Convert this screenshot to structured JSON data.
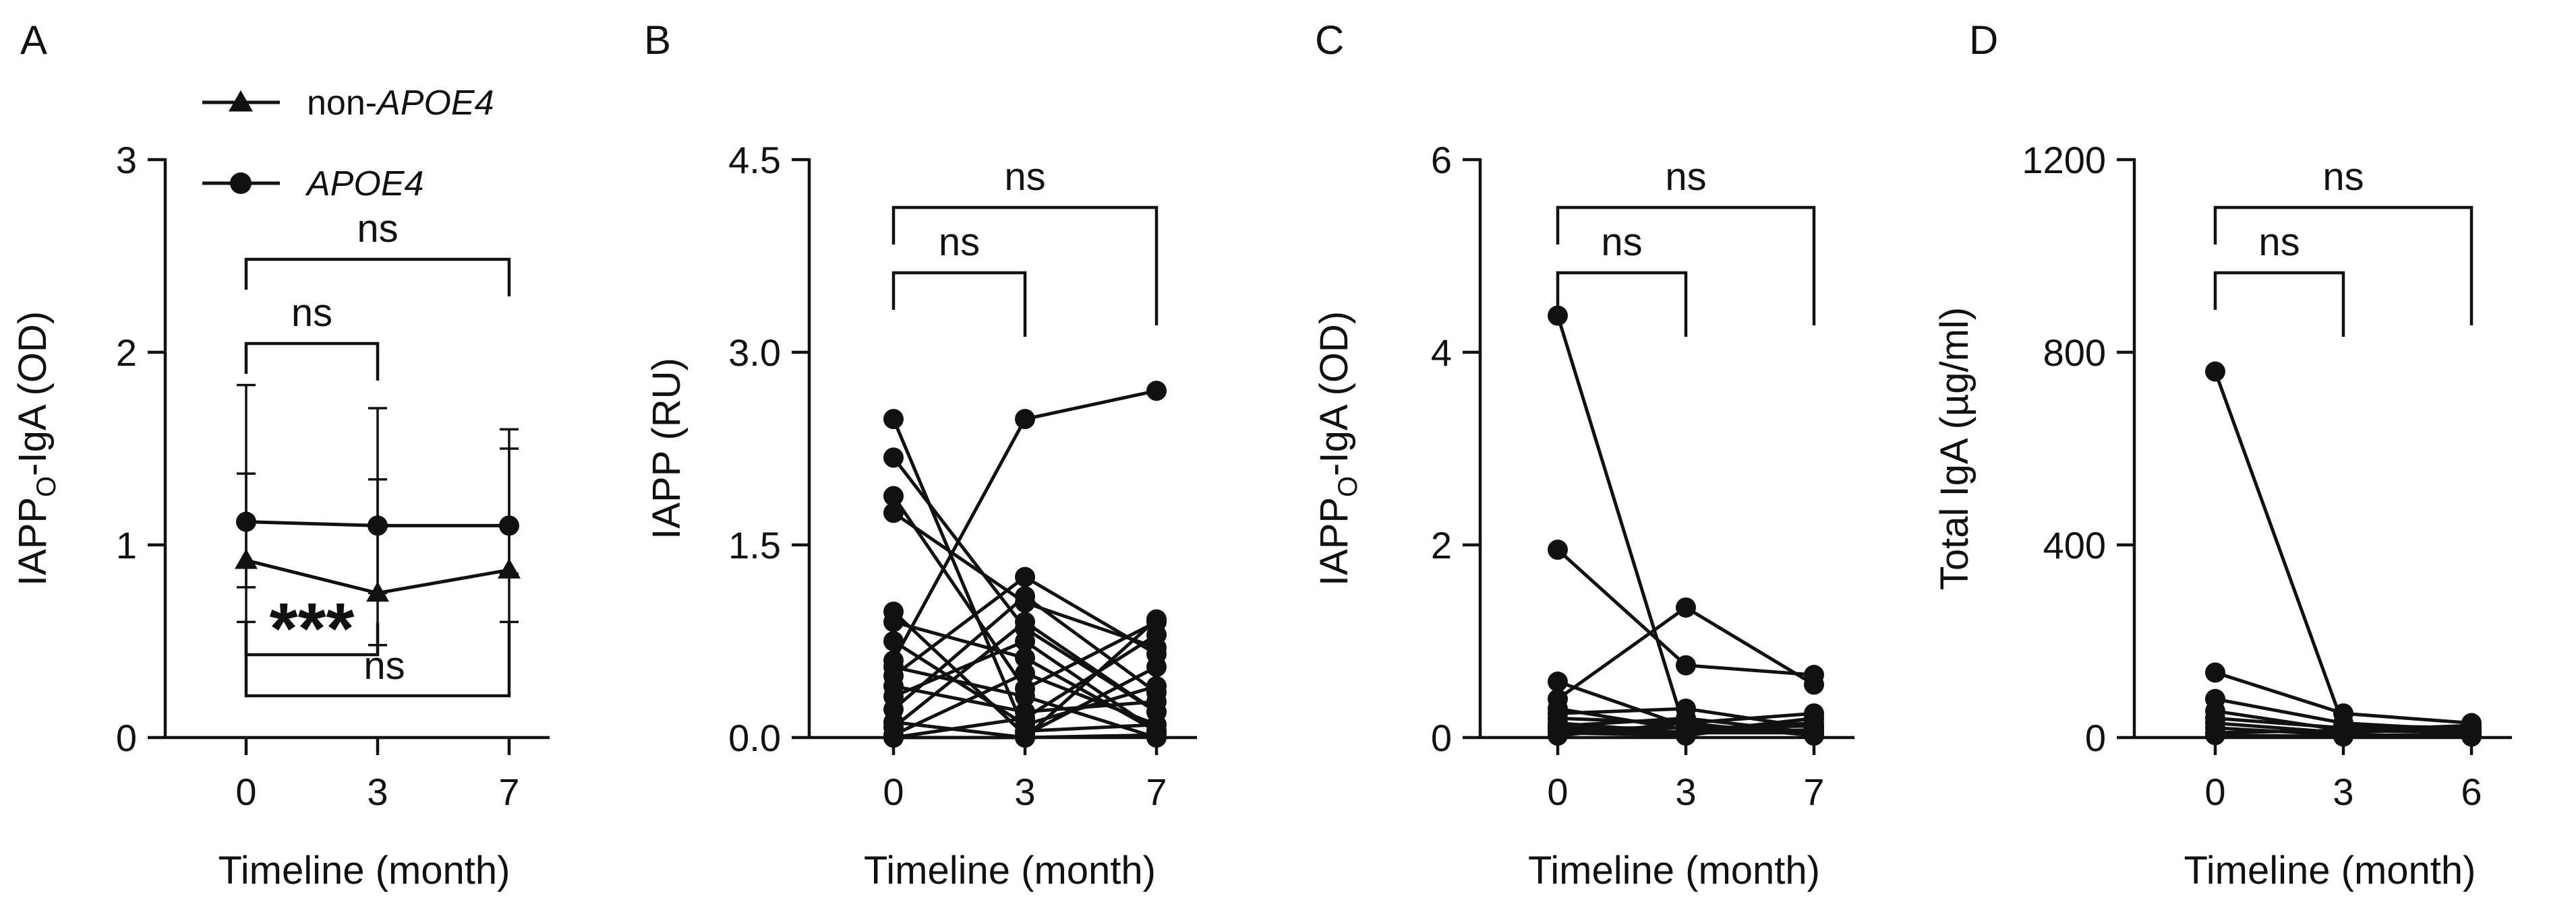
{
  "chart_data": [
    {
      "panel": "A",
      "type": "line",
      "xlabel": "Timeline (month)",
      "ylabel": {
        "main": "IAPP",
        "sub": "O",
        "rest": "-IgA (OD)"
      },
      "categories": [
        "0",
        "3",
        "7"
      ],
      "ylim": [
        0,
        3
      ],
      "yticks": [
        "0",
        "1",
        "2",
        "3"
      ],
      "legend": {
        "position": "top-left"
      },
      "series": [
        {
          "name_prefix": "non-",
          "name_italic": "APOE4",
          "marker": "triangle",
          "values": [
            0.92,
            0.75,
            0.87
          ],
          "err_lo": [
            0.6,
            0.48,
            0.6
          ],
          "err_hi": [
            1.37,
            1.34,
            1.5
          ]
        },
        {
          "name_prefix": "",
          "name_italic": "APOE4",
          "marker": "circle",
          "values": [
            1.12,
            1.1,
            1.1
          ],
          "err_lo": [
            0.78,
            0.75,
            0.85
          ],
          "err_hi": [
            1.83,
            1.71,
            1.6
          ]
        }
      ],
      "comparisons": [
        {
          "from": 0,
          "to": 1,
          "label": "ns",
          "side": "top"
        },
        {
          "from": 0,
          "to": 2,
          "label": "ns",
          "side": "top"
        },
        {
          "from": 0,
          "to": 1,
          "label": "***",
          "side": "bottom"
        },
        {
          "from": 0,
          "to": 2,
          "label": "ns",
          "side": "bottom"
        }
      ]
    },
    {
      "panel": "B",
      "type": "line",
      "xlabel": "Timeline (month)",
      "ylabel": {
        "main": "IAPP (RU)",
        "sub": "",
        "rest": ""
      },
      "categories": [
        "0",
        "3",
        "7"
      ],
      "ylim": [
        0,
        4.5
      ],
      "yticks": [
        "0.0",
        "1.5",
        "3.0",
        "4.5"
      ],
      "series": [
        [
          2.48,
          0.05,
          0.1
        ],
        [
          2.18,
          0.85,
          0.2
        ],
        [
          1.88,
          0.38,
          0.9
        ],
        [
          1.75,
          1.05,
          0.7
        ],
        [
          0.98,
          0.02,
          0.55
        ],
        [
          0.9,
          0.62,
          0.05
        ],
        [
          0.75,
          0.1,
          0.4
        ],
        [
          0.6,
          2.48,
          2.7
        ],
        [
          0.55,
          0.32,
          0.0
        ],
        [
          0.48,
          1.25,
          0.65
        ],
        [
          0.4,
          0.2,
          0.28
        ],
        [
          0.32,
          0.75,
          0.05
        ],
        [
          0.22,
          1.1,
          0.35
        ],
        [
          0.12,
          0.0,
          0.92
        ],
        [
          0.08,
          0.9,
          0.2
        ],
        [
          0.02,
          0.5,
          0.1
        ],
        [
          0.0,
          0.15,
          0.8
        ],
        [
          0.0,
          0.0,
          0.02
        ]
      ],
      "comparisons": [
        {
          "from": 0,
          "to": 1,
          "label": "ns",
          "side": "top"
        },
        {
          "from": 0,
          "to": 2,
          "label": "ns",
          "side": "top"
        }
      ]
    },
    {
      "panel": "C",
      "type": "line",
      "xlabel": "Timeline (month)",
      "ylabel": {
        "main": "IAPP",
        "sub": "O",
        "rest": "-IgA (OD)"
      },
      "categories": [
        "0",
        "3",
        "7"
      ],
      "ylim": [
        0,
        6
      ],
      "yticks": [
        "0",
        "2",
        "4",
        "6"
      ],
      "series": [
        [
          4.38,
          0.05,
          0.2
        ],
        [
          1.95,
          0.75,
          0.65
        ],
        [
          0.58,
          0.12,
          0.05
        ],
        [
          0.4,
          1.35,
          0.55
        ],
        [
          0.3,
          0.08,
          0.15
        ],
        [
          0.25,
          0.3,
          0.1
        ],
        [
          0.2,
          0.15,
          0.25
        ],
        [
          0.15,
          0.05,
          0.08
        ],
        [
          0.12,
          0.2,
          0.05
        ],
        [
          0.1,
          0.1,
          0.12
        ],
        [
          0.08,
          0.05,
          0.05
        ],
        [
          0.05,
          0.02,
          0.2
        ],
        [
          0.02,
          0.15,
          0.02
        ]
      ],
      "comparisons": [
        {
          "from": 0,
          "to": 1,
          "label": "ns",
          "side": "top"
        },
        {
          "from": 0,
          "to": 2,
          "label": "ns",
          "side": "top"
        }
      ]
    },
    {
      "panel": "D",
      "type": "line",
      "xlabel": "Timeline (month)",
      "ylabel": {
        "main": "Total IgA (µg/ml)",
        "sub": "",
        "rest": ""
      },
      "categories": [
        "0",
        "3",
        "6"
      ],
      "ylim": [
        0,
        1200
      ],
      "yticks": [
        "0",
        "400",
        "800",
        "1200"
      ],
      "series": [
        [
          760,
          25,
          20
        ],
        [
          135,
          50,
          30
        ],
        [
          80,
          30,
          15
        ],
        [
          55,
          15,
          25
        ],
        [
          40,
          20,
          10
        ],
        [
          30,
          10,
          20
        ],
        [
          20,
          5,
          5
        ],
        [
          10,
          15,
          10
        ],
        [
          5,
          2,
          2
        ]
      ],
      "comparisons": [
        {
          "from": 0,
          "to": 1,
          "label": "ns",
          "side": "top"
        },
        {
          "from": 0,
          "to": 2,
          "label": "ns",
          "side": "top"
        }
      ]
    }
  ]
}
